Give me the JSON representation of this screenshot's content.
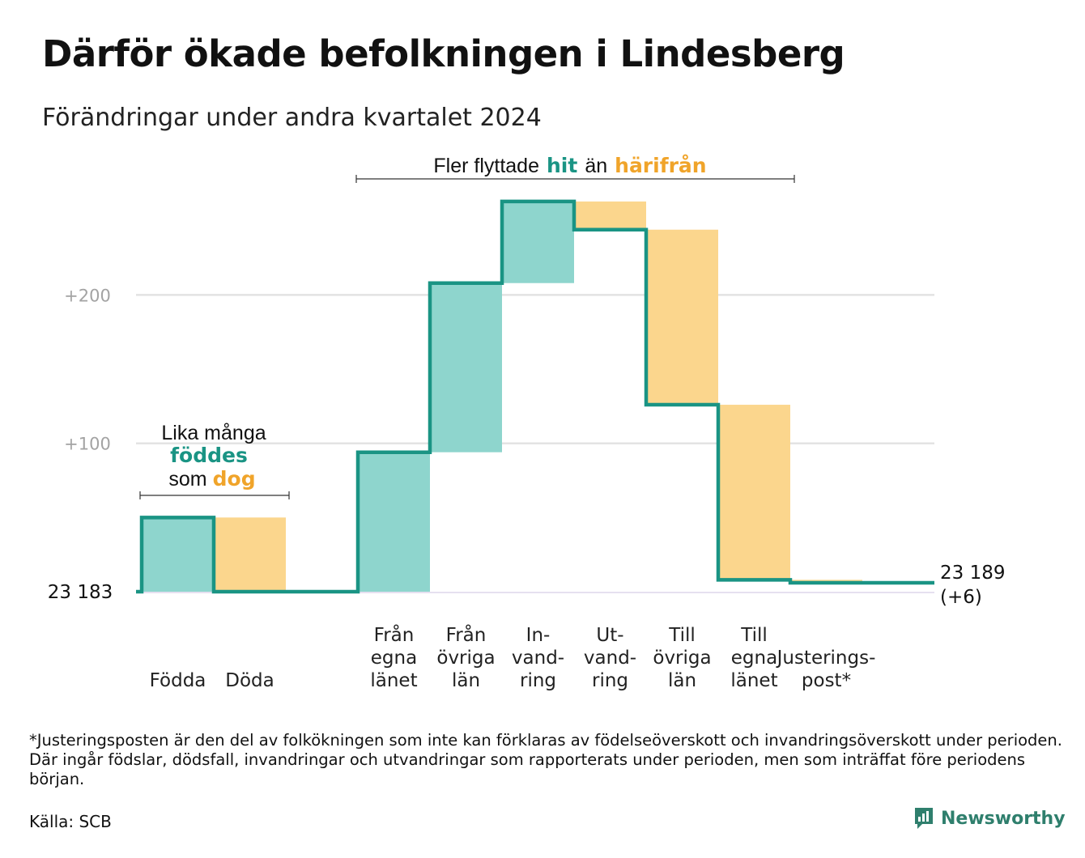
{
  "title": "Därför ökade befolkningen i Lindesberg",
  "subtitle": "Förändringar under andra kvartalet 2024",
  "colors": {
    "increase_fill": "#8ed5cd",
    "decrease_fill": "#fbd68d",
    "line": "#1a9484",
    "grid": "#e3e3e3",
    "teal_text": "#1a9484",
    "orange_text": "#f0a42a",
    "brand": "#2f7f6d"
  },
  "annotations": {
    "birth_death": {
      "line1": "Lika många",
      "line2": "föddes",
      "line3_pre": "som",
      "line3_bold": "dog"
    },
    "migration": {
      "pre": "Fler flyttade",
      "bold1": "hit",
      "mid": "än",
      "bold2": "härifrån"
    }
  },
  "chart_data": {
    "type": "waterfall",
    "title": "Därför ökade befolkningen i Lindesberg",
    "subtitle": "Förändringar under andra kvartalet 2024",
    "start_value": 23183,
    "start_label": "23  183",
    "end_value": 23189,
    "end_label_line1": "23 189",
    "end_label_line2": "(+6)",
    "yticks": [
      {
        "value": 100,
        "label": "+100"
      },
      {
        "value": 200,
        "label": "+200"
      }
    ],
    "ylim": [
      0,
      270
    ],
    "grid": true,
    "steps": [
      {
        "label_lines": [
          "Födda"
        ],
        "change": 50,
        "slot": 0
      },
      {
        "label_lines": [
          "Döda"
        ],
        "change": -50,
        "slot": 1
      },
      {
        "label_lines": [
          "Från",
          "egna",
          "länet"
        ],
        "change": 94,
        "slot": 3
      },
      {
        "label_lines": [
          "Från",
          "övriga",
          "län"
        ],
        "change": 114,
        "slot": 4
      },
      {
        "label_lines": [
          "In-",
          "vand-",
          "ring"
        ],
        "change": 55,
        "slot": 5
      },
      {
        "label_lines": [
          "Ut-",
          "vand-",
          "ring"
        ],
        "change": -19,
        "slot": 6
      },
      {
        "label_lines": [
          "Till",
          "övriga",
          "län"
        ],
        "change": -118,
        "slot": 7
      },
      {
        "label_lines": [
          "Till",
          "egna",
          "länet"
        ],
        "change": -118,
        "slot": 8
      },
      {
        "label_lines": [
          "Justerings-",
          "post*"
        ],
        "change": -2,
        "slot": 9
      }
    ]
  },
  "footnote": "*Justeringsposten är den del av folkökningen som inte kan förklaras av födelseöverskott och invandringsöverskott under perioden. Där ingår födslar, dödsfall, invandringar och utvandringar som rapporterats under perioden, men som inträffat före periodens början.",
  "source": "Källa: SCB",
  "brand": {
    "name": "Newsworthy",
    "icon": "newsworthy-logo-icon"
  }
}
